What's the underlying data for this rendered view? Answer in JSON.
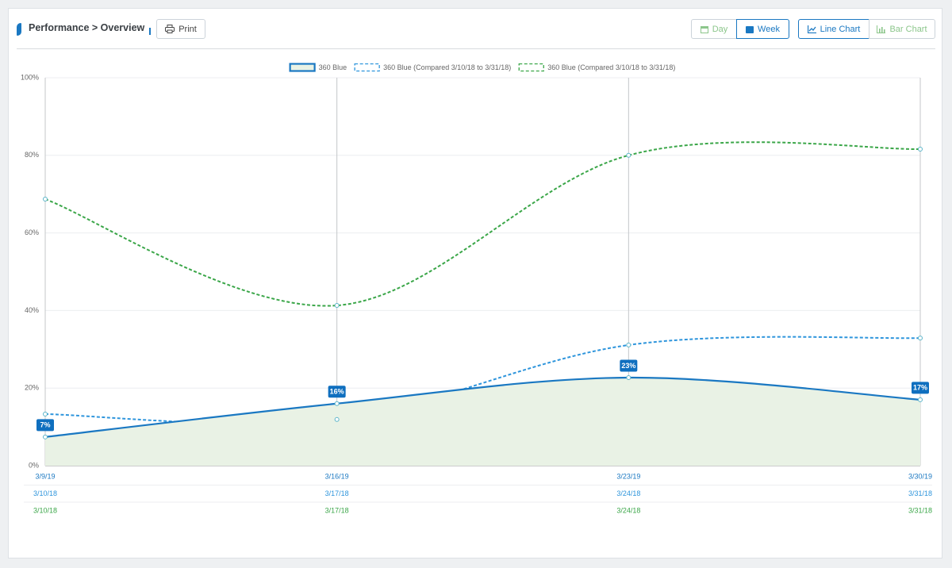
{
  "header": {
    "breadcrumb": "Performance > Overview",
    "print": "Print",
    "day": "Day",
    "week": "Week",
    "line_chart": "Line Chart",
    "bar_chart": "Bar Chart"
  },
  "chart_data": {
    "type": "line",
    "x": [
      "3/9/19",
      "3/16/19",
      "3/23/19",
      "3/30/19"
    ],
    "ylim": [
      0,
      100
    ],
    "yticks": [
      {
        "value": 0,
        "label": "0%"
      },
      {
        "value": 20,
        "label": "20%"
      },
      {
        "value": 40,
        "label": "40%"
      },
      {
        "value": 60,
        "label": "60%"
      },
      {
        "value": 80,
        "label": "80%"
      },
      {
        "value": 100,
        "label": "100%"
      }
    ],
    "grid": true,
    "legend": "top",
    "series": [
      {
        "name": "360 Blue",
        "color": "#1a78c2",
        "dashed": false,
        "area": true,
        "values": [
          7.4,
          16.0,
          22.7,
          17.0
        ],
        "value_labels": [
          "7%",
          "16%",
          "23%",
          "17%"
        ]
      },
      {
        "name": "360 Blue (Compared 3/10/18 to 3/31/18)",
        "color": "#2e95dc",
        "dashed": true,
        "values": [
          13.3,
          11.9,
          31.1,
          32.9
        ],
        "x_labels": [
          "3/10/18",
          "3/17/18",
          "3/24/18",
          "3/31/18"
        ]
      },
      {
        "name": "360 Blue (Compared 3/10/18 to 3/31/18)",
        "color": "#3aa648",
        "dashed": true,
        "values": [
          68.7,
          41.3,
          80.0,
          81.6
        ],
        "x_labels": [
          "3/10/18",
          "3/17/18",
          "3/24/18",
          "3/31/18"
        ]
      }
    ]
  }
}
